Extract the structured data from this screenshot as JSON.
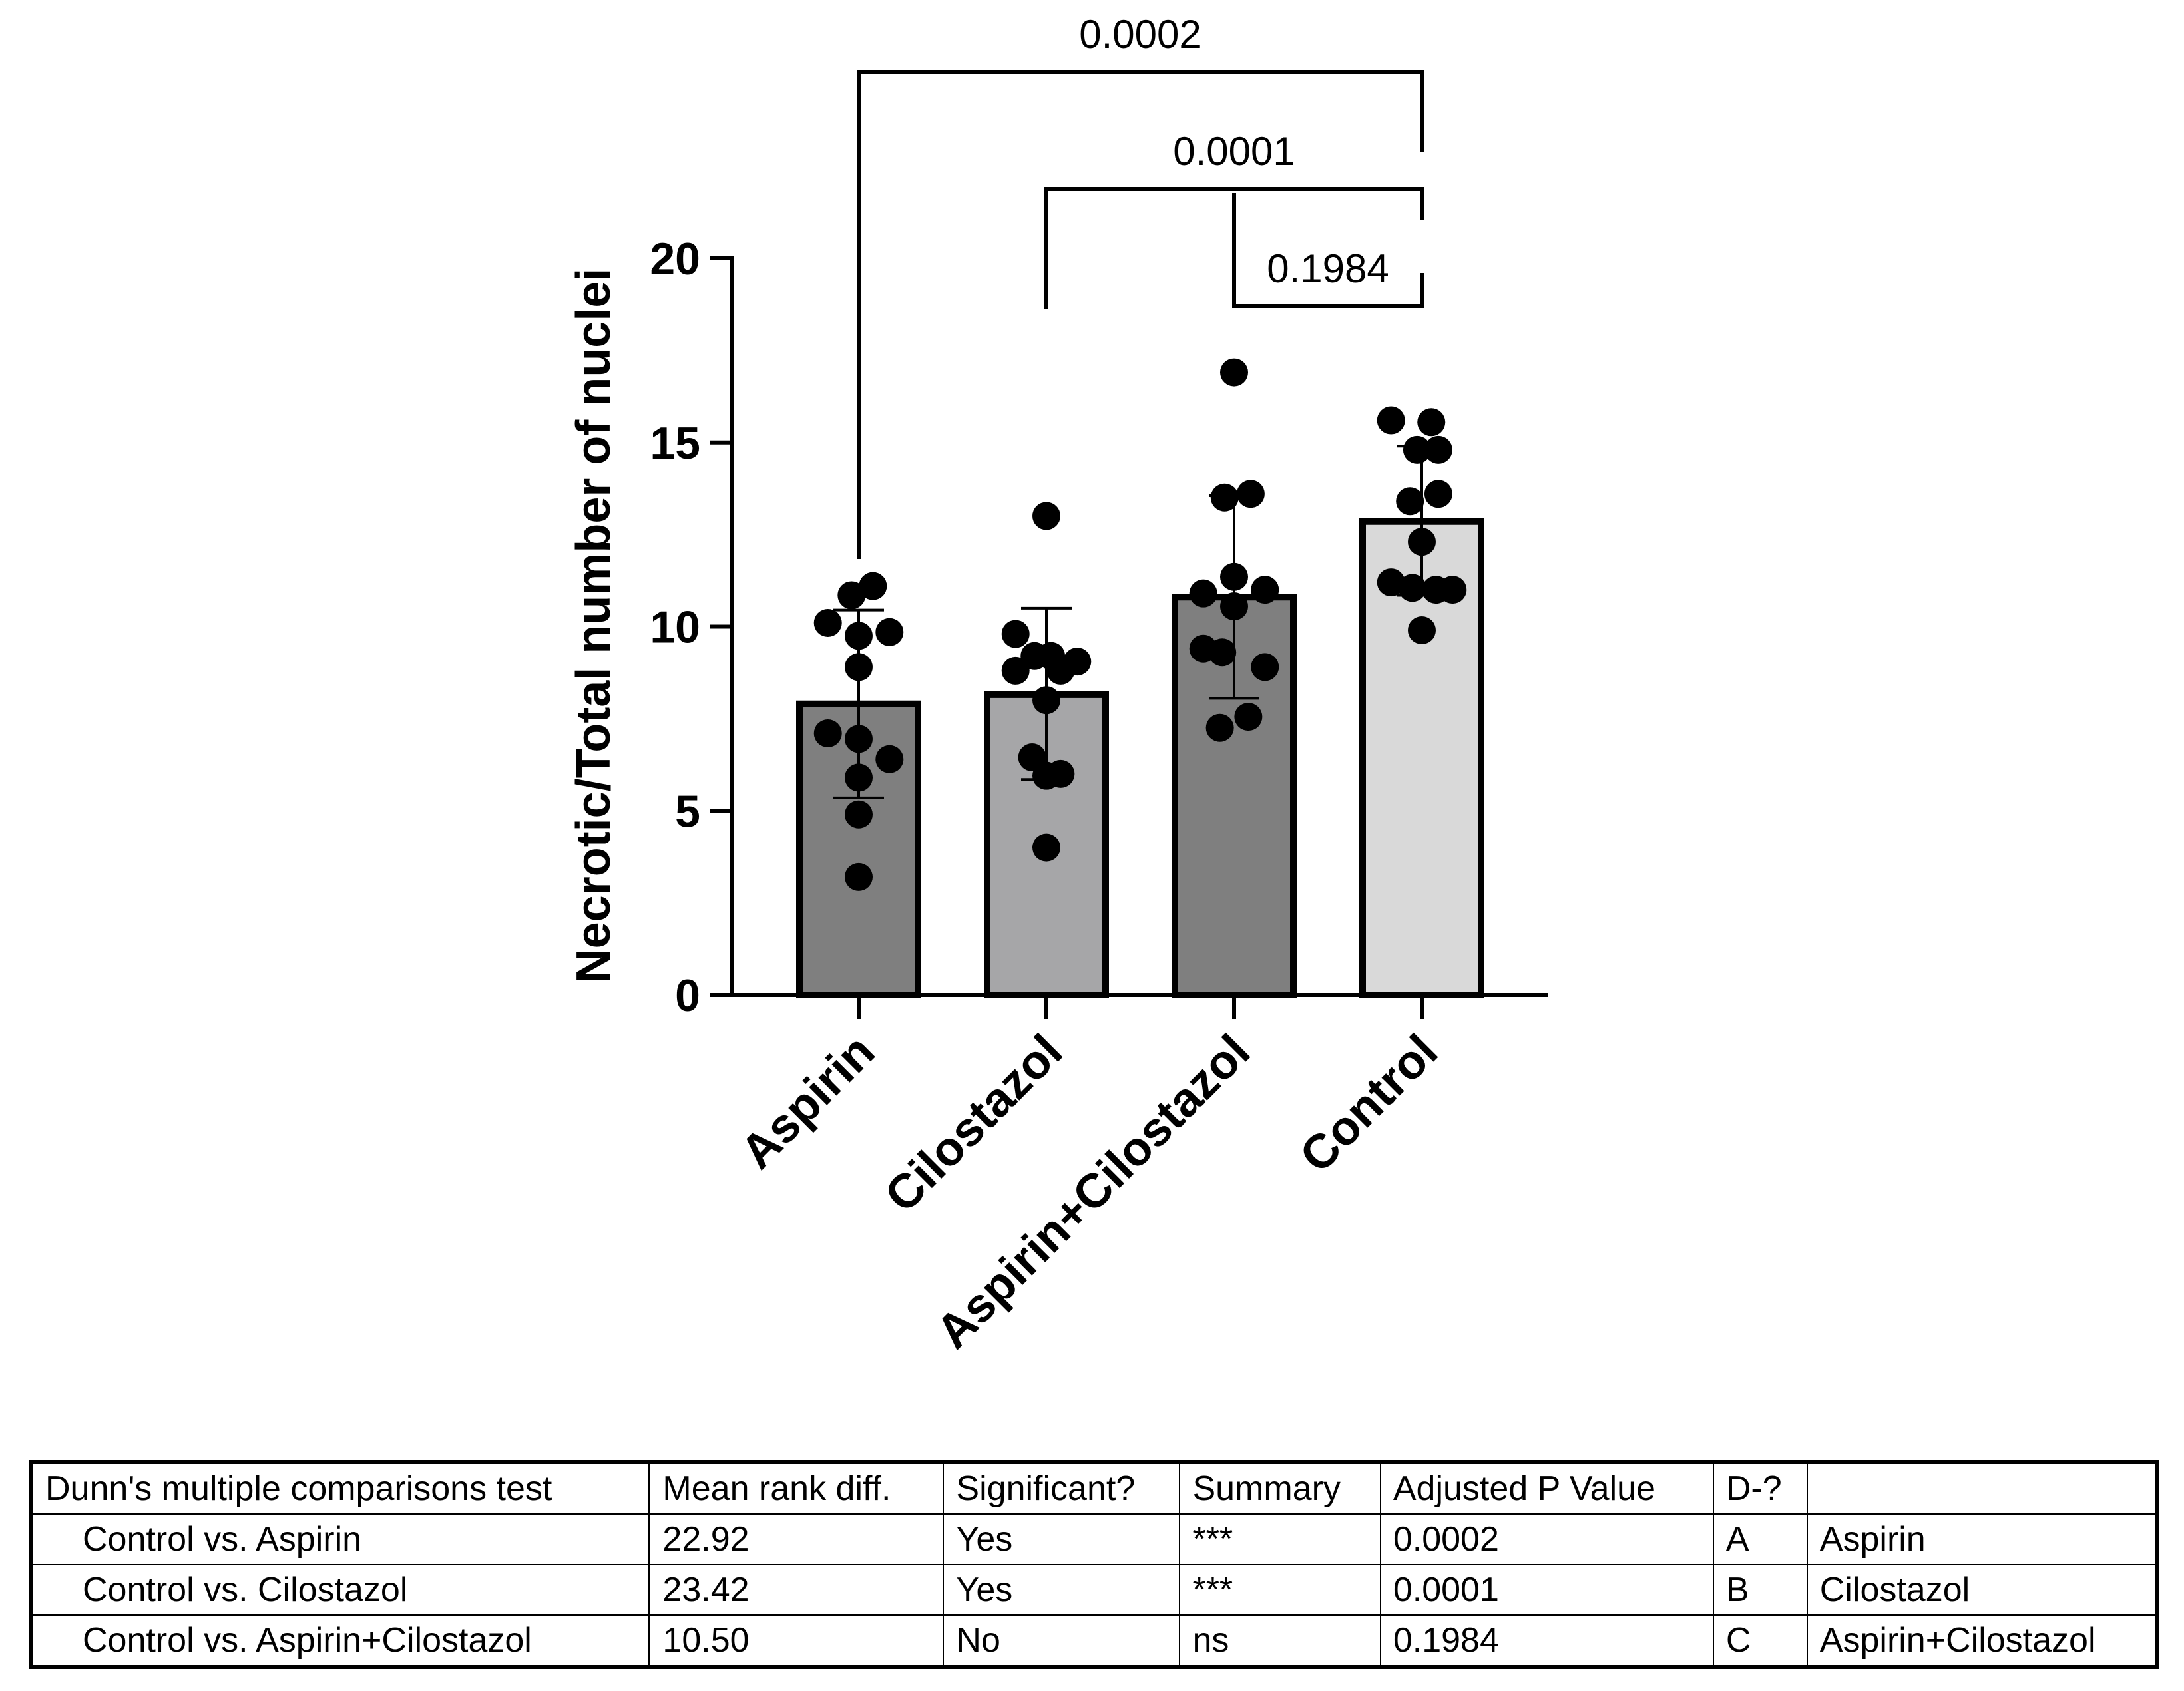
{
  "chart_data": {
    "type": "bar",
    "title": "",
    "xlabel": "",
    "ylabel": "Necrotic/Total number of nuclei",
    "ylim": [
      0,
      20
    ],
    "yticks": [
      0,
      5,
      10,
      15,
      20
    ],
    "categories": [
      "Aspirin",
      "Cilostazol",
      "Aspirin+Cilostazol",
      "Control"
    ],
    "values": [
      7.9,
      8.15,
      10.8,
      12.85
    ],
    "error": [
      {
        "low": 5.35,
        "high": 10.45
      },
      {
        "low": 5.85,
        "high": 10.5
      },
      {
        "low": 8.05,
        "high": 13.55
      },
      {
        "low": 10.85,
        "high": 14.9
      }
    ],
    "bar_colors": [
      "#7f7f7f",
      "#a6a6a8",
      "#7f7f7f",
      "#d9d9d9"
    ],
    "points": [
      [
        [
          -0.26,
          10.1
        ],
        [
          -0.06,
          10.85
        ],
        [
          0.12,
          11.1
        ],
        [
          0.26,
          9.85
        ],
        [
          0.0,
          9.75
        ],
        [
          0.0,
          8.9
        ],
        [
          -0.26,
          7.1
        ],
        [
          0.0,
          6.95
        ],
        [
          0.26,
          6.4
        ],
        [
          0.0,
          5.9
        ],
        [
          0.0,
          4.9
        ],
        [
          0.0,
          3.2
        ]
      ],
      [
        [
          -0.26,
          9.8
        ],
        [
          -0.1,
          9.2
        ],
        [
          0.04,
          9.2
        ],
        [
          0.26,
          9.05
        ],
        [
          -0.26,
          8.8
        ],
        [
          0.12,
          8.8
        ],
        [
          0.0,
          8.0
        ],
        [
          -0.12,
          6.45
        ],
        [
          0.12,
          6.0
        ],
        [
          0.0,
          5.95
        ],
        [
          0.0,
          4.0
        ],
        [
          0.0,
          13.0
        ]
      ],
      [
        [
          0.0,
          16.9
        ],
        [
          -0.08,
          13.5
        ],
        [
          0.14,
          13.6
        ],
        [
          0.0,
          11.35
        ],
        [
          -0.26,
          10.9
        ],
        [
          0.26,
          11.0
        ],
        [
          0.0,
          10.55
        ],
        [
          -0.26,
          9.4
        ],
        [
          0.26,
          8.9
        ],
        [
          -0.1,
          9.3
        ],
        [
          0.12,
          7.55
        ],
        [
          -0.12,
          7.25
        ]
      ],
      [
        [
          -0.26,
          15.6
        ],
        [
          0.08,
          15.55
        ],
        [
          -0.04,
          14.8
        ],
        [
          0.14,
          14.8
        ],
        [
          -0.1,
          13.4
        ],
        [
          0.14,
          13.6
        ],
        [
          0.0,
          12.3
        ],
        [
          -0.26,
          11.2
        ],
        [
          0.26,
          11.0
        ],
        [
          -0.08,
          11.05
        ],
        [
          0.12,
          11.0
        ],
        [
          0.0,
          9.9
        ]
      ]
    ],
    "comparisons": [
      {
        "from": 0,
        "to": 3,
        "p": "0.0002"
      },
      {
        "from": 1,
        "to": 3,
        "p": "0.0001"
      },
      {
        "from": 2,
        "to": 3,
        "p": "0.1984"
      }
    ]
  },
  "table": {
    "header": [
      "Dunn's multiple comparisons test",
      "Mean rank diff.",
      "Significant?",
      "Summary",
      "Adjusted P Value",
      "D-?",
      ""
    ],
    "rows": [
      [
        "Control vs. Aspirin",
        "22.92",
        "Yes",
        "***",
        "0.0002",
        "A",
        "Aspirin"
      ],
      [
        "Control vs. Cilostazol",
        "23.42",
        "Yes",
        "***",
        "0.0001",
        "B",
        "Cilostazol"
      ],
      [
        "Control vs. Aspirin+Cilostazol",
        "10.50",
        "No",
        "ns",
        "0.1984",
        "C",
        "Aspirin+Cilostazol"
      ]
    ]
  }
}
